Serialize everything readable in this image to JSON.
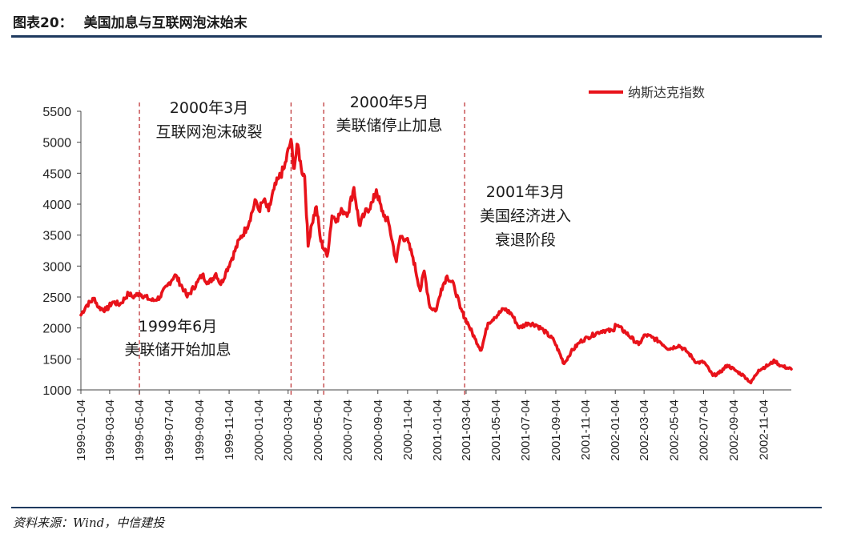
{
  "header": {
    "number": "图表20：",
    "title": "美国加息与互联网泡沫始末"
  },
  "source": "资料来源：Wind，中信建投",
  "colors": {
    "series": "#e8121a",
    "rule": "#1f3a5f",
    "vline": "#c0393b"
  },
  "chart_data": {
    "type": "line",
    "title": "",
    "xlabel": "",
    "ylabel": "",
    "ylim": [
      1000,
      5500
    ],
    "yticks": [
      1000,
      1500,
      2000,
      2500,
      3000,
      3500,
      4000,
      4500,
      5000,
      5500
    ],
    "xlim": [
      "1999-01-04",
      "2002-12-31"
    ],
    "xticks": [
      "1999-01-04",
      "1999-03-04",
      "1999-05-04",
      "1999-07-04",
      "1999-09-04",
      "1999-11-04",
      "2000-01-04",
      "2000-03-04",
      "2000-05-04",
      "2000-07-04",
      "2000-09-04",
      "2000-11-04",
      "2001-01-04",
      "2001-03-04",
      "2001-05-04",
      "2001-07-04",
      "2001-09-04",
      "2001-11-04",
      "2002-01-04",
      "2002-03-04",
      "2002-05-04",
      "2002-07-04",
      "2002-09-04",
      "2002-11-04"
    ],
    "legend": {
      "position": "top-right"
    },
    "grid": false,
    "series": [
      {
        "name": "纳斯达克指数",
        "color": "#e8121a",
        "points": [
          [
            "1999-01-04",
            2208
          ],
          [
            "1999-01-15",
            2360
          ],
          [
            "1999-02-01",
            2480
          ],
          [
            "1999-02-09",
            2330
          ],
          [
            "1999-02-25",
            2290
          ],
          [
            "1999-03-10",
            2420
          ],
          [
            "1999-03-25",
            2380
          ],
          [
            "1999-04-12",
            2560
          ],
          [
            "1999-04-20",
            2500
          ],
          [
            "1999-05-04",
            2560
          ],
          [
            "1999-05-25",
            2460
          ],
          [
            "1999-06-02",
            2440
          ],
          [
            "1999-06-15",
            2500
          ],
          [
            "1999-06-30",
            2680
          ],
          [
            "1999-07-16",
            2860
          ],
          [
            "1999-08-04",
            2610
          ],
          [
            "1999-08-10",
            2500
          ],
          [
            "1999-08-31",
            2740
          ],
          [
            "1999-09-10",
            2860
          ],
          [
            "1999-09-23",
            2720
          ],
          [
            "1999-10-08",
            2880
          ],
          [
            "1999-10-18",
            2700
          ],
          [
            "1999-10-28",
            2900
          ],
          [
            "1999-11-10",
            3130
          ],
          [
            "1999-11-26",
            3440
          ],
          [
            "1999-12-10",
            3620
          ],
          [
            "1999-12-29",
            4060
          ],
          [
            "2000-01-04",
            3900
          ],
          [
            "2000-01-14",
            4064
          ],
          [
            "2000-01-24",
            3890
          ],
          [
            "2000-02-04",
            4240
          ],
          [
            "2000-02-14",
            4420
          ],
          [
            "2000-02-25",
            4580
          ],
          [
            "2000-03-10",
            5048
          ],
          [
            "2000-03-15",
            4580
          ],
          [
            "2000-03-24",
            4960
          ],
          [
            "2000-03-31",
            4570
          ],
          [
            "2000-04-07",
            4450
          ],
          [
            "2000-04-14",
            3320
          ],
          [
            "2000-04-20",
            3640
          ],
          [
            "2000-05-01",
            3960
          ],
          [
            "2000-05-10",
            3400
          ],
          [
            "2000-05-23",
            3160
          ],
          [
            "2000-06-02",
            3810
          ],
          [
            "2000-06-12",
            3760
          ],
          [
            "2000-06-23",
            3900
          ],
          [
            "2000-07-05",
            3860
          ],
          [
            "2000-07-17",
            4270
          ],
          [
            "2000-07-28",
            3660
          ],
          [
            "2000-08-08",
            3840
          ],
          [
            "2000-08-25",
            4040
          ],
          [
            "2000-09-01",
            4234
          ],
          [
            "2000-09-12",
            3890
          ],
          [
            "2000-09-26",
            3700
          ],
          [
            "2000-10-12",
            3070
          ],
          [
            "2000-10-20",
            3480
          ],
          [
            "2000-11-02",
            3440
          ],
          [
            "2000-11-15",
            3140
          ],
          [
            "2000-11-30",
            2600
          ],
          [
            "2000-12-08",
            2920
          ],
          [
            "2000-12-20",
            2330
          ],
          [
            "2001-01-02",
            2290
          ],
          [
            "2001-01-12",
            2630
          ],
          [
            "2001-01-24",
            2840
          ],
          [
            "2001-02-08",
            2670
          ],
          [
            "2001-02-20",
            2320
          ],
          [
            "2001-03-09",
            2050
          ],
          [
            "2001-03-22",
            1830
          ],
          [
            "2001-04-04",
            1640
          ],
          [
            "2001-04-18",
            2080
          ],
          [
            "2001-05-01",
            2170
          ],
          [
            "2001-05-21",
            2310
          ],
          [
            "2001-06-05",
            2230
          ],
          [
            "2001-06-21",
            2000
          ],
          [
            "2001-07-09",
            2080
          ],
          [
            "2001-07-26",
            2050
          ],
          [
            "2001-08-10",
            1960
          ],
          [
            "2001-08-31",
            1800
          ],
          [
            "2001-09-21",
            1423
          ],
          [
            "2001-10-05",
            1610
          ],
          [
            "2001-10-24",
            1780
          ],
          [
            "2001-11-09",
            1850
          ],
          [
            "2001-11-30",
            1930
          ],
          [
            "2001-12-10",
            1960
          ],
          [
            "2001-12-31",
            1950
          ],
          [
            "2002-01-04",
            2060
          ],
          [
            "2002-01-25",
            1930
          ],
          [
            "2002-02-21",
            1730
          ],
          [
            "2002-03-06",
            1890
          ],
          [
            "2002-03-20",
            1850
          ],
          [
            "2002-04-05",
            1780
          ],
          [
            "2002-04-24",
            1660
          ],
          [
            "2002-05-14",
            1720
          ],
          [
            "2002-05-31",
            1620
          ],
          [
            "2002-06-20",
            1440
          ],
          [
            "2002-07-05",
            1450
          ],
          [
            "2002-07-23",
            1230
          ],
          [
            "2002-08-05",
            1270
          ],
          [
            "2002-08-22",
            1400
          ],
          [
            "2002-09-10",
            1300
          ],
          [
            "2002-09-26",
            1220
          ],
          [
            "2002-10-09",
            1114
          ],
          [
            "2002-10-25",
            1320
          ],
          [
            "2002-11-14",
            1400
          ],
          [
            "2002-11-27",
            1470
          ],
          [
            "2002-12-09",
            1390
          ],
          [
            "2002-12-31",
            1335
          ]
        ]
      }
    ],
    "annotations": [
      {
        "date": "1999-05-04",
        "lines": [
          "1999年6月",
          "美联储开始加息"
        ],
        "position": "below"
      },
      {
        "date": "2000-03-10",
        "lines": [
          "2000年3月",
          "互联网泡沫破裂"
        ],
        "position": "above"
      },
      {
        "date": "2000-05-16",
        "lines": [
          "2000年5月",
          "美联储停止加息"
        ],
        "position": "above"
      },
      {
        "date": "2001-03-01",
        "lines": [
          "2001年3月",
          "美国经济进入",
          "衰退阶段"
        ],
        "position": "right"
      }
    ]
  }
}
